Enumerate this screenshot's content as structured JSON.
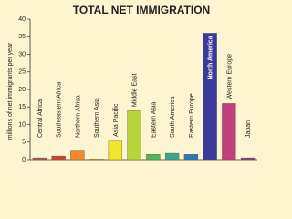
{
  "chart_data": {
    "type": "bar",
    "title": "TOTAL NET IMMIGRATION",
    "y_label": "millions of net immigrants per year",
    "categories": [
      "Central Africa",
      "Southeastern Africa",
      "Northern Africa",
      "Southern Asia",
      "Asia Pacific",
      "Middle East",
      "Eastern Asia",
      "South America",
      "Eastern Europe",
      "North America",
      "Western Europe",
      "Japan"
    ],
    "values": [
      0.5,
      1,
      2.7,
      0.2,
      5.5,
      14,
      1.5,
      1.8,
      1.5,
      36,
      16,
      0.5
    ],
    "colors": [
      "#b5524a",
      "#e03a2f",
      "#f08a2a",
      "#f5b52a",
      "#f2e52a",
      "#b8d43a",
      "#4cb85a",
      "#3aa88a",
      "#2a7ab8",
      "#3a3a9a",
      "#c0407a",
      "#8a3a8a"
    ],
    "ylim": [
      0,
      40
    ],
    "yticks": [
      0,
      5,
      10,
      15,
      20,
      25,
      30,
      35,
      40
    ]
  }
}
